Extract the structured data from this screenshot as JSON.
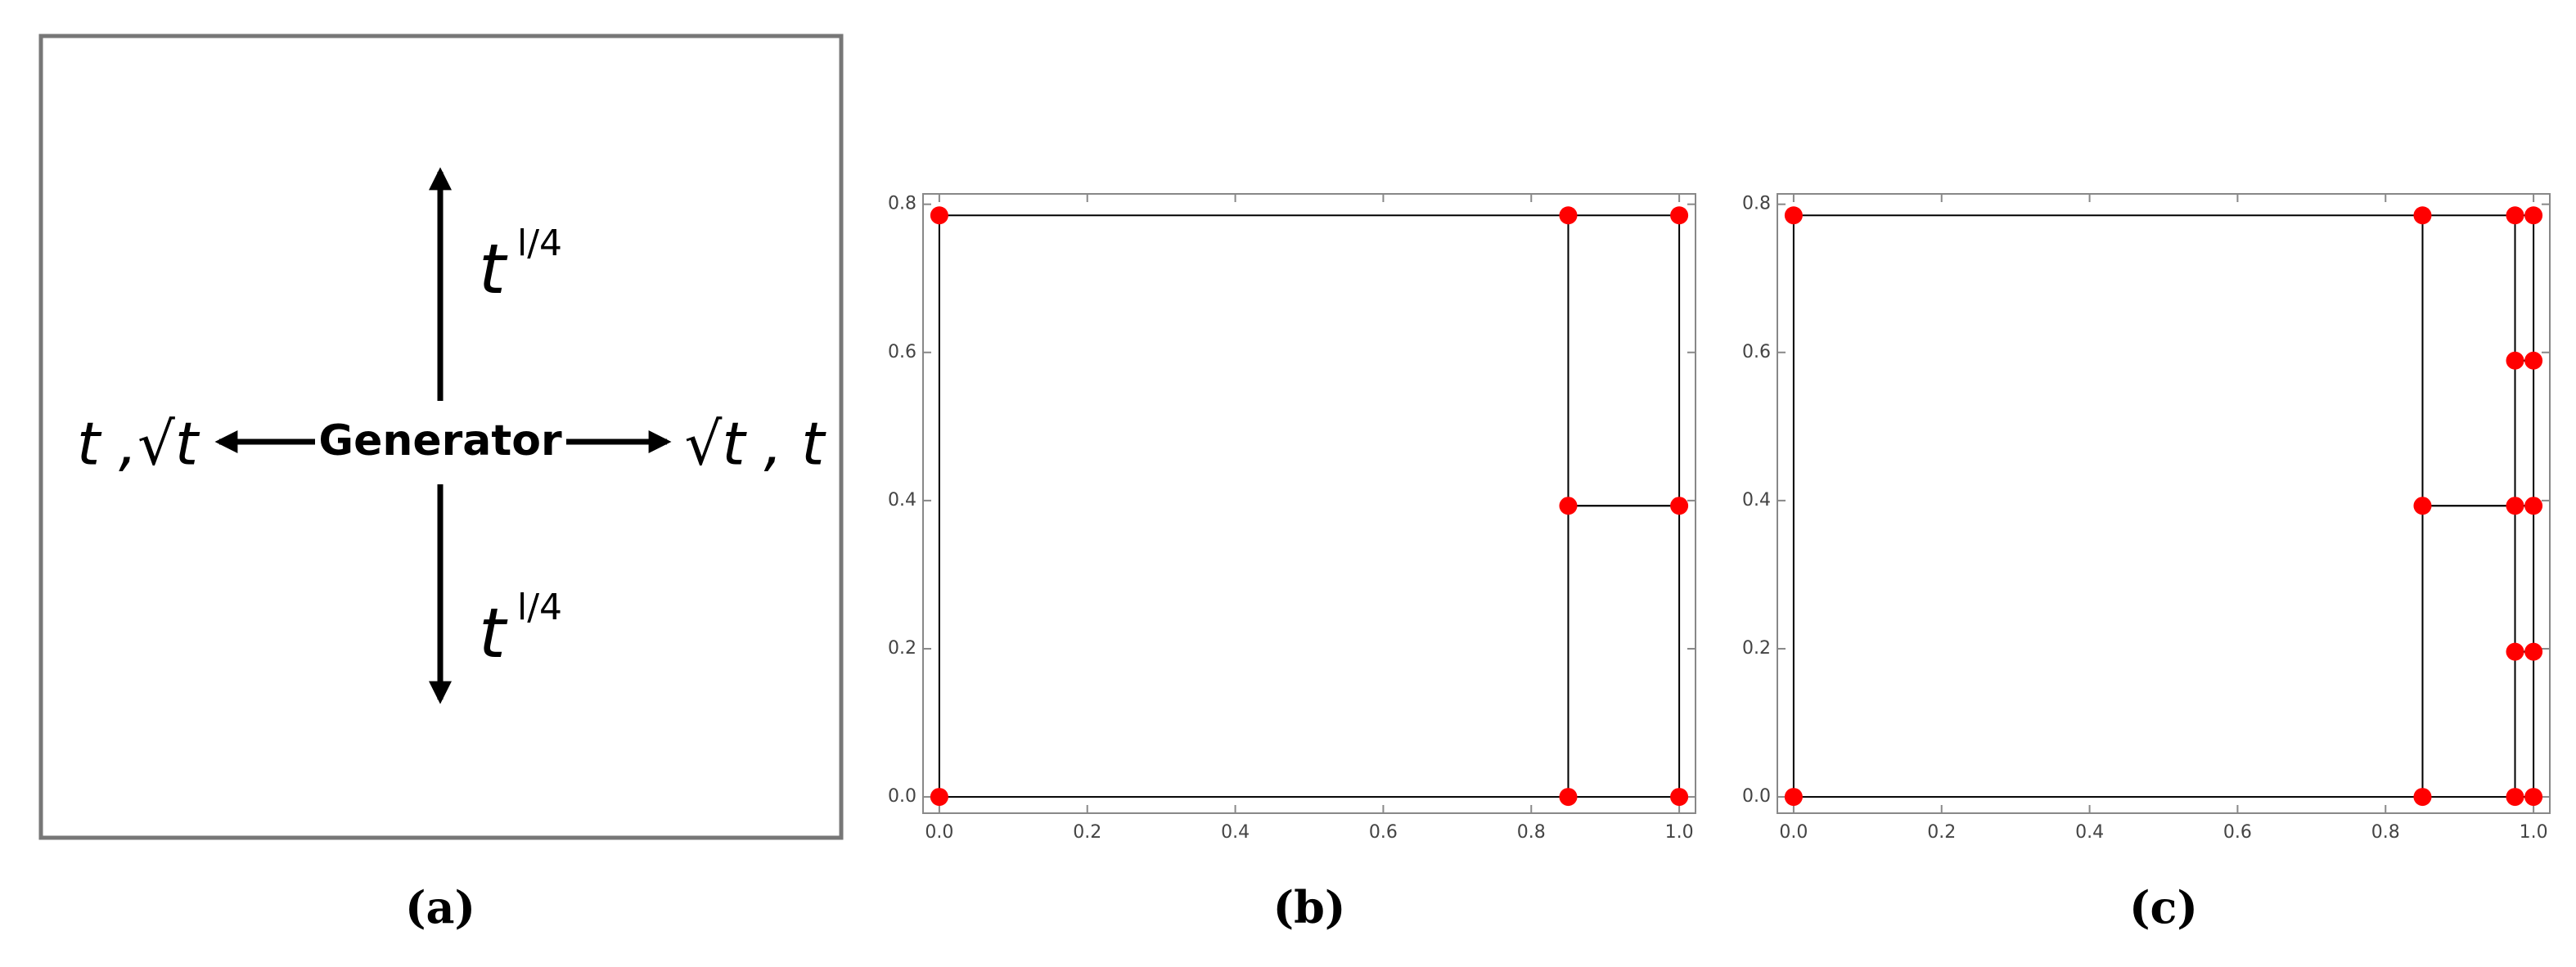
{
  "diagram": {
    "center": "Generator",
    "up": {
      "base": "t",
      "exponent": "l/4"
    },
    "down": {
      "base": "t",
      "exponent": "l/4"
    },
    "left": "t ,√t",
    "right": "√t , t"
  },
  "captions": [
    "(a)",
    "(b)",
    "(c)"
  ],
  "chart_data": [
    {
      "type": "scatter",
      "x": [
        0,
        0,
        0.85,
        1,
        0.85,
        1,
        0.85,
        1
      ],
      "y": [
        0,
        0.785,
        0.785,
        0.785,
        0.393,
        0.393,
        0,
        0
      ],
      "rects": [
        [
          0,
          0.85,
          0,
          0.785
        ],
        [
          0.85,
          1,
          0,
          0.393
        ],
        [
          0.85,
          1,
          0.393,
          0.785
        ]
      ],
      "color": "#ff0000",
      "line_color": "#000000",
      "xlim": [
        -0.022,
        1.022
      ],
      "ylim": [
        -0.022,
        0.814
      ],
      "xticks": [
        {
          "value": 0,
          "label": "0.0"
        },
        0.2,
        0.4,
        0.6,
        0.8,
        {
          "value": 1,
          "label": "1.0"
        }
      ],
      "yticks": [
        {
          "value": 0,
          "label": "0.0"
        },
        0.2,
        0.4,
        0.6,
        0.8
      ]
    },
    {
      "type": "scatter",
      "x": [
        0,
        0,
        0.85,
        0.85,
        0.85,
        0.975,
        0.975,
        0.975,
        0.975,
        0.975,
        1,
        1,
        1,
        1,
        1
      ],
      "y": [
        0,
        0.785,
        0,
        0.393,
        0.785,
        0,
        0.196,
        0.393,
        0.589,
        0.785,
        0,
        0.196,
        0.393,
        0.589,
        0.785
      ],
      "rects": [
        [
          0,
          0.85,
          0,
          0.785
        ],
        [
          0.85,
          0.975,
          0,
          0.393
        ],
        [
          0.85,
          0.975,
          0.393,
          0.785
        ],
        [
          0.975,
          1,
          0,
          0.196
        ],
        [
          0.975,
          1,
          0.196,
          0.393
        ],
        [
          0.975,
          1,
          0.393,
          0.589
        ],
        [
          0.975,
          1,
          0.589,
          0.785
        ]
      ],
      "color": "#ff0000",
      "line_color": "#000000",
      "xlim": [
        -0.022,
        1.022
      ],
      "ylim": [
        -0.022,
        0.814
      ],
      "xticks": [
        {
          "value": 0,
          "label": "0.0"
        },
        0.2,
        0.4,
        0.6,
        0.8,
        {
          "value": 1,
          "label": "1.0"
        }
      ],
      "yticks": [
        {
          "value": 0,
          "label": "0.0"
        },
        0.2,
        0.4,
        0.6,
        0.8
      ]
    }
  ]
}
